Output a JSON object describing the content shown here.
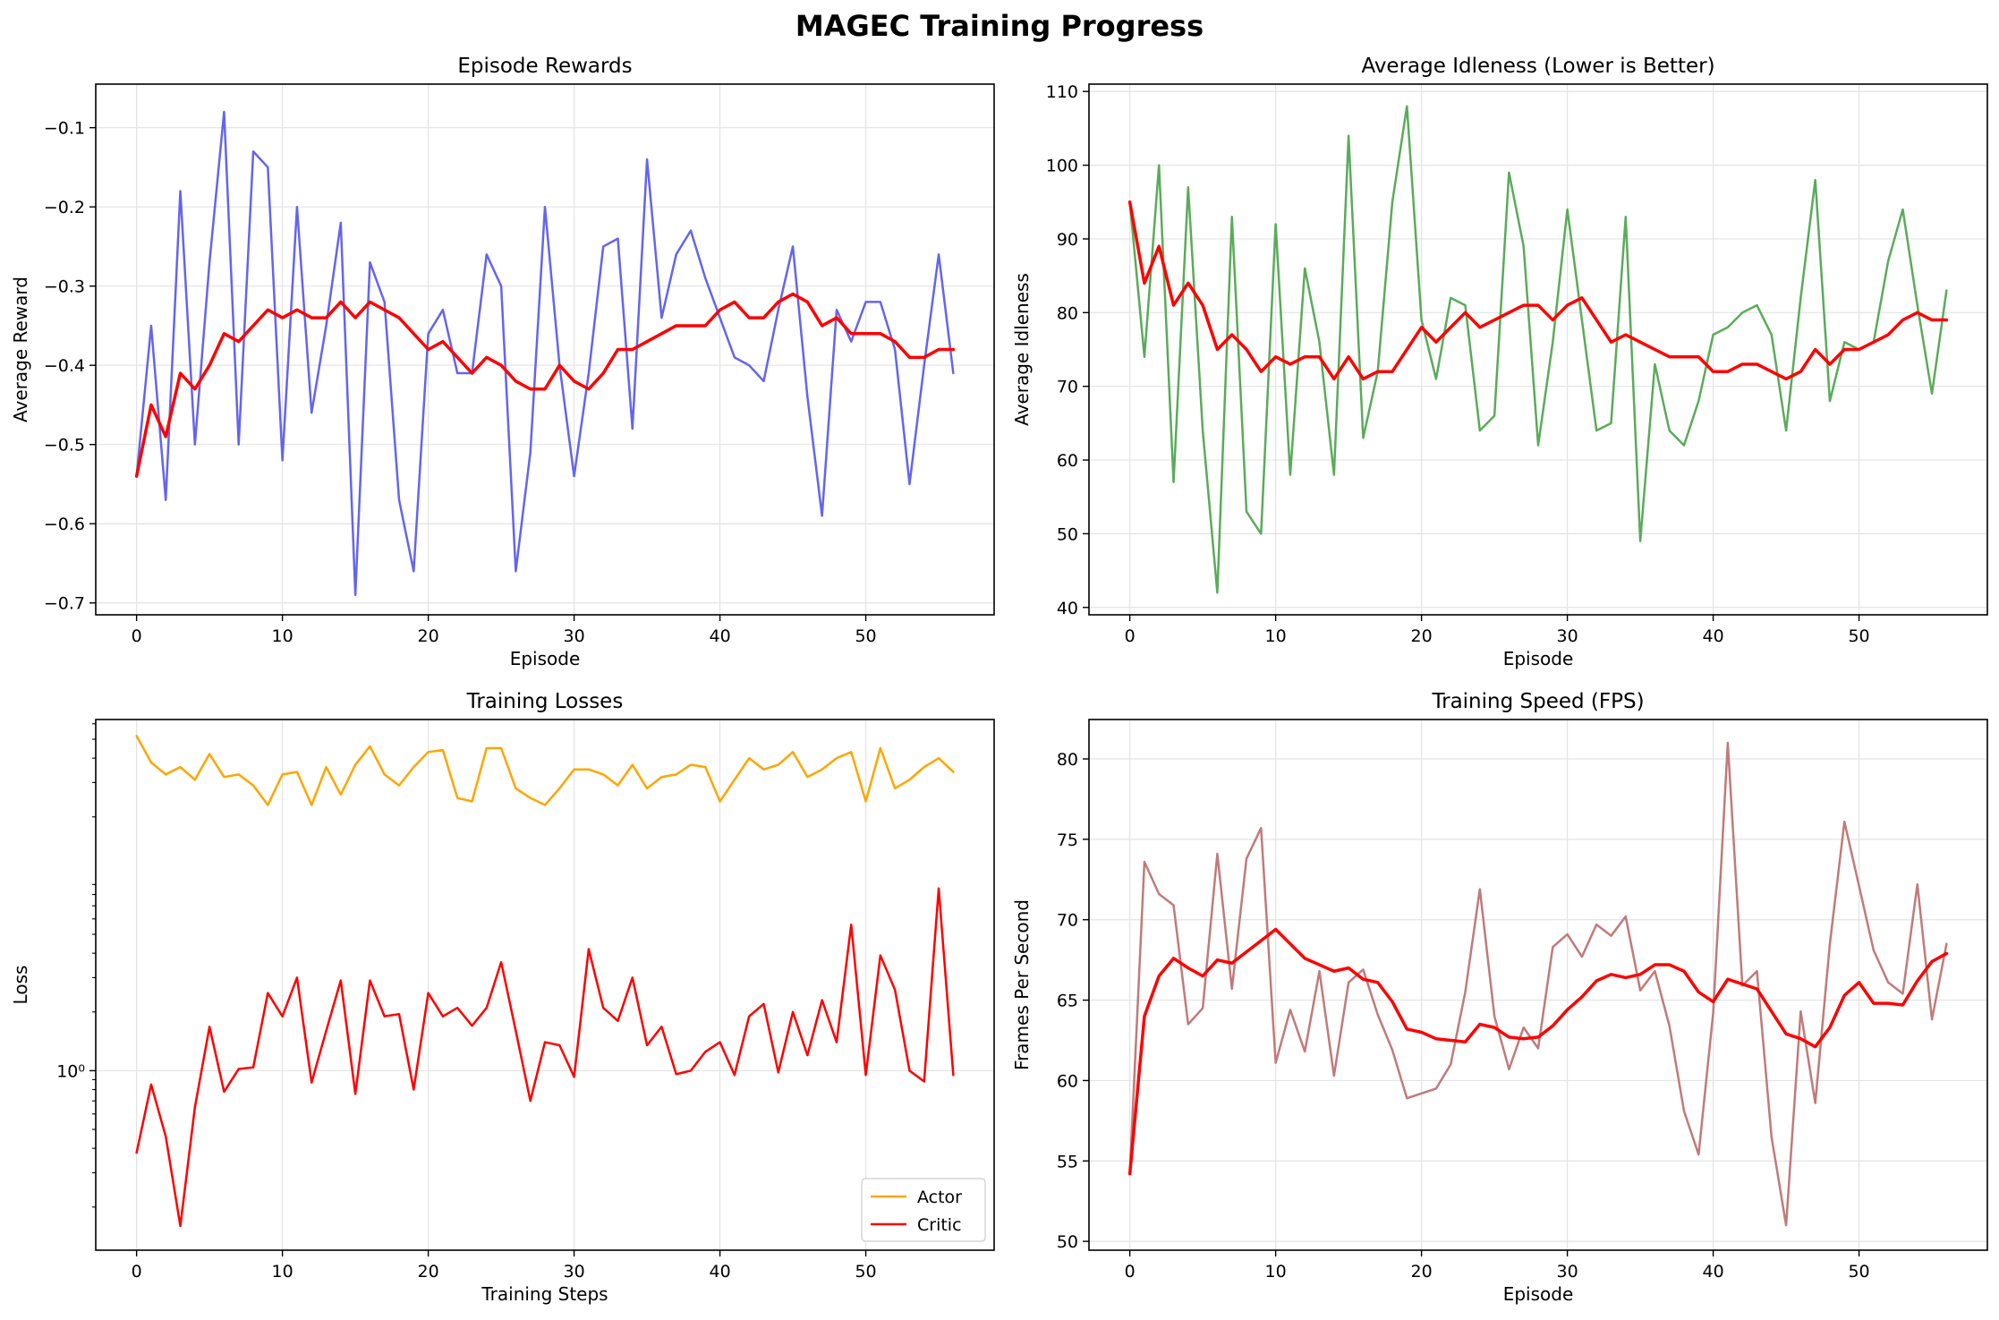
{
  "figure": {
    "title": "MAGEC Training Progress"
  },
  "chart_data": [
    {
      "type": "line",
      "title": "Episode Rewards",
      "xlabel": "Episode",
      "ylabel": "Average Reward",
      "xlim": [
        -2.8,
        58.8
      ],
      "ylim": [
        -0.715,
        -0.045
      ],
      "yscale": "linear",
      "xticks": [
        0,
        10,
        20,
        30,
        40,
        50
      ],
      "yticks": [
        -0.7,
        -0.6,
        -0.5,
        -0.4,
        -0.3,
        -0.2,
        -0.1
      ],
      "ytick_labels": [
        "−0.7",
        "−0.6",
        "−0.5",
        "−0.4",
        "−0.3",
        "−0.2",
        "−0.1"
      ],
      "grid": true,
      "series": [
        {
          "color": "#6464f0",
          "width": 2.5,
          "values": [
            -0.54,
            -0.35,
            -0.57,
            -0.18,
            -0.5,
            -0.27,
            -0.08,
            -0.5,
            -0.13,
            -0.15,
            -0.52,
            -0.2,
            -0.46,
            -0.35,
            -0.22,
            -0.69,
            -0.27,
            -0.32,
            -0.57,
            -0.66,
            -0.36,
            -0.33,
            -0.41,
            -0.41,
            -0.26,
            -0.3,
            -0.66,
            -0.51,
            -0.2,
            -0.4,
            -0.54,
            -0.41,
            -0.25,
            -0.24,
            -0.48,
            -0.14,
            -0.34,
            -0.26,
            -0.23,
            -0.29,
            -0.34,
            -0.39,
            -0.4,
            -0.42,
            -0.33,
            -0.25,
            -0.44,
            -0.59,
            -0.33,
            -0.37,
            -0.32,
            -0.32,
            -0.38,
            -0.55,
            -0.4,
            -0.26,
            -0.41
          ]
        },
        {
          "color": "#ff0000",
          "width": 3.5,
          "values": [
            -0.54,
            -0.45,
            -0.49,
            -0.41,
            -0.43,
            -0.4,
            -0.36,
            -0.37,
            -0.35,
            -0.33,
            -0.34,
            -0.33,
            -0.34,
            -0.34,
            -0.32,
            -0.34,
            -0.32,
            -0.33,
            -0.34,
            -0.36,
            -0.38,
            -0.37,
            -0.39,
            -0.41,
            -0.39,
            -0.4,
            -0.42,
            -0.43,
            -0.43,
            -0.4,
            -0.42,
            -0.43,
            -0.41,
            -0.38,
            -0.38,
            -0.37,
            -0.36,
            -0.35,
            -0.35,
            -0.35,
            -0.33,
            -0.32,
            -0.34,
            -0.34,
            -0.32,
            -0.31,
            -0.32,
            -0.35,
            -0.34,
            -0.36,
            -0.36,
            -0.36,
            -0.37,
            -0.39,
            -0.39,
            -0.38,
            -0.38
          ]
        }
      ]
    },
    {
      "type": "line",
      "title": "Average Idleness (Lower is Better)",
      "xlabel": "Episode",
      "ylabel": "Average Idleness",
      "xlim": [
        -2.8,
        58.8
      ],
      "ylim": [
        39,
        111
      ],
      "yscale": "linear",
      "xticks": [
        0,
        10,
        20,
        30,
        40,
        50
      ],
      "yticks": [
        40,
        50,
        60,
        70,
        80,
        90,
        100,
        110
      ],
      "ytick_labels": [
        "40",
        "50",
        "60",
        "70",
        "80",
        "90",
        "100",
        "110"
      ],
      "grid": true,
      "series": [
        {
          "color": "#5aab5a",
          "width": 2.5,
          "values": [
            95,
            74,
            100,
            57,
            97,
            64,
            42,
            93,
            53,
            50,
            92,
            58,
            86,
            76,
            58,
            104,
            63,
            72,
            95,
            108,
            79,
            71,
            82,
            81,
            64,
            66,
            99,
            89,
            62,
            76,
            94,
            79,
            64,
            65,
            93,
            49,
            73,
            64,
            62,
            68,
            77,
            78,
            80,
            81,
            77,
            64,
            82,
            98,
            68,
            76,
            75,
            76,
            87,
            94,
            81,
            69,
            83
          ]
        },
        {
          "color": "#ff0000",
          "width": 3.5,
          "values": [
            95,
            84,
            89,
            81,
            84,
            81,
            75,
            77,
            75,
            72,
            74,
            73,
            74,
            74,
            71,
            74,
            71,
            72,
            72,
            75,
            78,
            76,
            78,
            80,
            78,
            79,
            80,
            81,
            81,
            79,
            81,
            82,
            79,
            76,
            77,
            76,
            75,
            74,
            74,
            74,
            72,
            72,
            73,
            73,
            72,
            71,
            72,
            75,
            73,
            75,
            75,
            76,
            77,
            79,
            80,
            79,
            79
          ]
        }
      ]
    },
    {
      "type": "line",
      "title": "Training Losses",
      "xlabel": "Training Steps",
      "ylabel": "Loss",
      "xlim": [
        -2.8,
        58.8
      ],
      "ylim": [
        0.1202,
        63.1
      ],
      "yscale": "log",
      "xticks": [
        0,
        10,
        20,
        30,
        40,
        50
      ],
      "yticks": [
        1
      ],
      "ytick_labels": [
        "10⁰"
      ],
      "minor_yticks": [
        0.2,
        0.3,
        0.4,
        0.5,
        0.6,
        0.7,
        0.8,
        0.9,
        2,
        3,
        4,
        5,
        6,
        7,
        8,
        9,
        20,
        30,
        40,
        50,
        60
      ],
      "grid": true,
      "legend": {
        "position": "lower-right",
        "entries": [
          "Actor",
          "Critic"
        ]
      },
      "series": [
        {
          "name": "Actor",
          "color": "#ffa500",
          "width": 2.5,
          "values": [
            52,
            38,
            33,
            36,
            31,
            42,
            32,
            33,
            29,
            23,
            33,
            34,
            23,
            36,
            26,
            37,
            46,
            33,
            29,
            36,
            43,
            44,
            25,
            24,
            45,
            45,
            28,
            25,
            23,
            28,
            35,
            35,
            33,
            29,
            37,
            28,
            32,
            33,
            37,
            36,
            24,
            31,
            40,
            35,
            37,
            43,
            32,
            35,
            40,
            43,
            24,
            45,
            28,
            31,
            36,
            40,
            34
          ]
        },
        {
          "name": "Critic",
          "color": "#ff0000",
          "width": 2.5,
          "values": [
            0.38,
            0.85,
            0.46,
            0.16,
            0.65,
            1.68,
            0.78,
            1.02,
            1.04,
            2.5,
            1.9,
            3.0,
            0.87,
            1.6,
            2.9,
            0.76,
            2.9,
            1.9,
            1.95,
            0.8,
            2.5,
            1.9,
            2.1,
            1.7,
            2.1,
            3.6,
            1.6,
            0.7,
            1.4,
            1.35,
            0.93,
            4.2,
            2.1,
            1.8,
            3.0,
            1.35,
            1.68,
            0.96,
            1.0,
            1.25,
            1.4,
            0.95,
            1.9,
            2.2,
            0.98,
            2.0,
            1.2,
            2.3,
            1.4,
            5.6,
            0.95,
            3.9,
            2.6,
            1.0,
            0.88,
            8.6,
            0.95
          ]
        }
      ]
    },
    {
      "type": "line",
      "title": "Training Speed (FPS)",
      "xlabel": "Episode",
      "ylabel": "Frames Per Second",
      "xlim": [
        -2.8,
        58.8
      ],
      "ylim": [
        49.45,
        82.45
      ],
      "yscale": "linear",
      "xticks": [
        0,
        10,
        20,
        30,
        40,
        50
      ],
      "yticks": [
        50,
        55,
        60,
        65,
        70,
        75,
        80
      ],
      "ytick_labels": [
        "50",
        "55",
        "60",
        "65",
        "70",
        "75",
        "80"
      ],
      "grid": true,
      "series": [
        {
          "color": "#c17a7a",
          "width": 2.5,
          "values": [
            54.2,
            73.6,
            71.6,
            70.9,
            63.5,
            64.5,
            74.1,
            65.7,
            73.8,
            75.7,
            61.1,
            64.4,
            61.8,
            66.8,
            60.3,
            66.1,
            66.9,
            64.1,
            61.9,
            58.9,
            59.2,
            59.5,
            61.0,
            65.5,
            71.9,
            64.0,
            60.7,
            63.3,
            62.0,
            68.3,
            69.1,
            67.7,
            69.7,
            69.0,
            70.2,
            65.6,
            66.8,
            63.4,
            58.1,
            55.4,
            64.2,
            81.0,
            65.9,
            66.8,
            56.5,
            51.0,
            64.3,
            58.6,
            68.5,
            76.1,
            72.1,
            68.1,
            66.1,
            65.4,
            72.2,
            63.8,
            68.5
          ]
        },
        {
          "color": "#ff0000",
          "width": 3.5,
          "values": [
            54.2,
            64.0,
            66.5,
            67.6,
            67.0,
            66.5,
            67.5,
            67.3,
            68.0,
            68.7,
            69.4,
            68.5,
            67.6,
            67.2,
            66.8,
            67.0,
            66.3,
            66.1,
            64.9,
            63.2,
            63.0,
            62.6,
            62.5,
            62.4,
            63.5,
            63.3,
            62.7,
            62.6,
            62.7,
            63.4,
            64.4,
            65.2,
            66.2,
            66.6,
            66.4,
            66.6,
            67.2,
            67.2,
            66.8,
            65.5,
            64.9,
            66.3,
            66.0,
            65.7,
            64.3,
            62.9,
            62.6,
            62.1,
            63.3,
            65.3,
            66.1,
            64.8,
            64.8,
            64.7,
            66.2,
            67.4,
            67.9
          ]
        }
      ]
    }
  ]
}
